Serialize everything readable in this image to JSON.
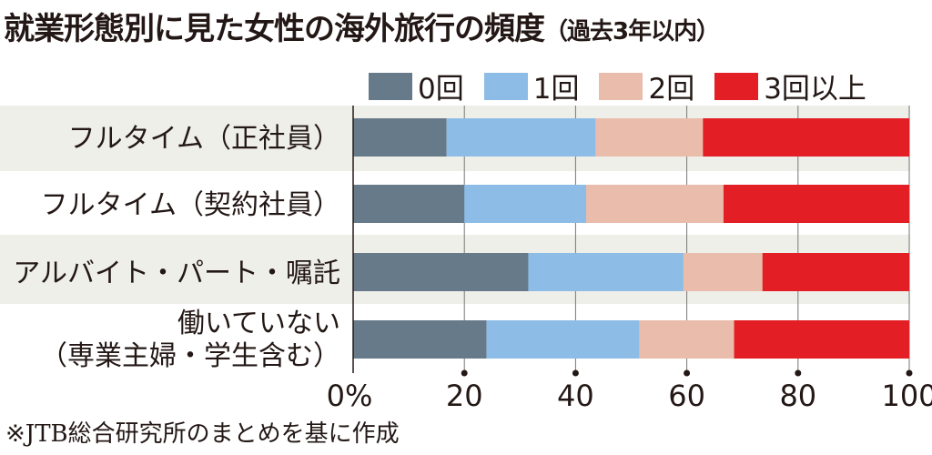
{
  "chart_data": {
    "type": "bar",
    "orientation": "horizontal-stacked",
    "title": "就業形態別に見た女性の海外旅行の頻度",
    "subtitle": "（過去3年以内）",
    "categories": [
      [
        "フルタイム（正社員）"
      ],
      [
        "フルタイム（契約社員）"
      ],
      [
        "アルバイト・パート・嘱託"
      ],
      [
        "働いていない",
        "（専業主婦・学生含む）"
      ]
    ],
    "series": [
      {
        "name": "0回",
        "color": "#667a8a",
        "values": [
          16.8,
          20.0,
          31.5,
          24.0
        ]
      },
      {
        "name": "1回",
        "color": "#8dbde6",
        "values": [
          26.8,
          21.9,
          27.9,
          27.5
        ]
      },
      {
        "name": "2回",
        "color": "#eabcab",
        "values": [
          19.3,
          24.7,
          14.2,
          17.0
        ]
      },
      {
        "name": "3回以上",
        "color": "#e31e24",
        "values": [
          37.1,
          33.4,
          26.4,
          31.5
        ]
      }
    ],
    "xlim": [
      0,
      100
    ],
    "xticks": [
      "0%",
      "20",
      "40",
      "60",
      "80",
      "100"
    ],
    "grid": true,
    "legend": "top-right",
    "note": "※JTB総合研究所のまとめを基に作成"
  }
}
